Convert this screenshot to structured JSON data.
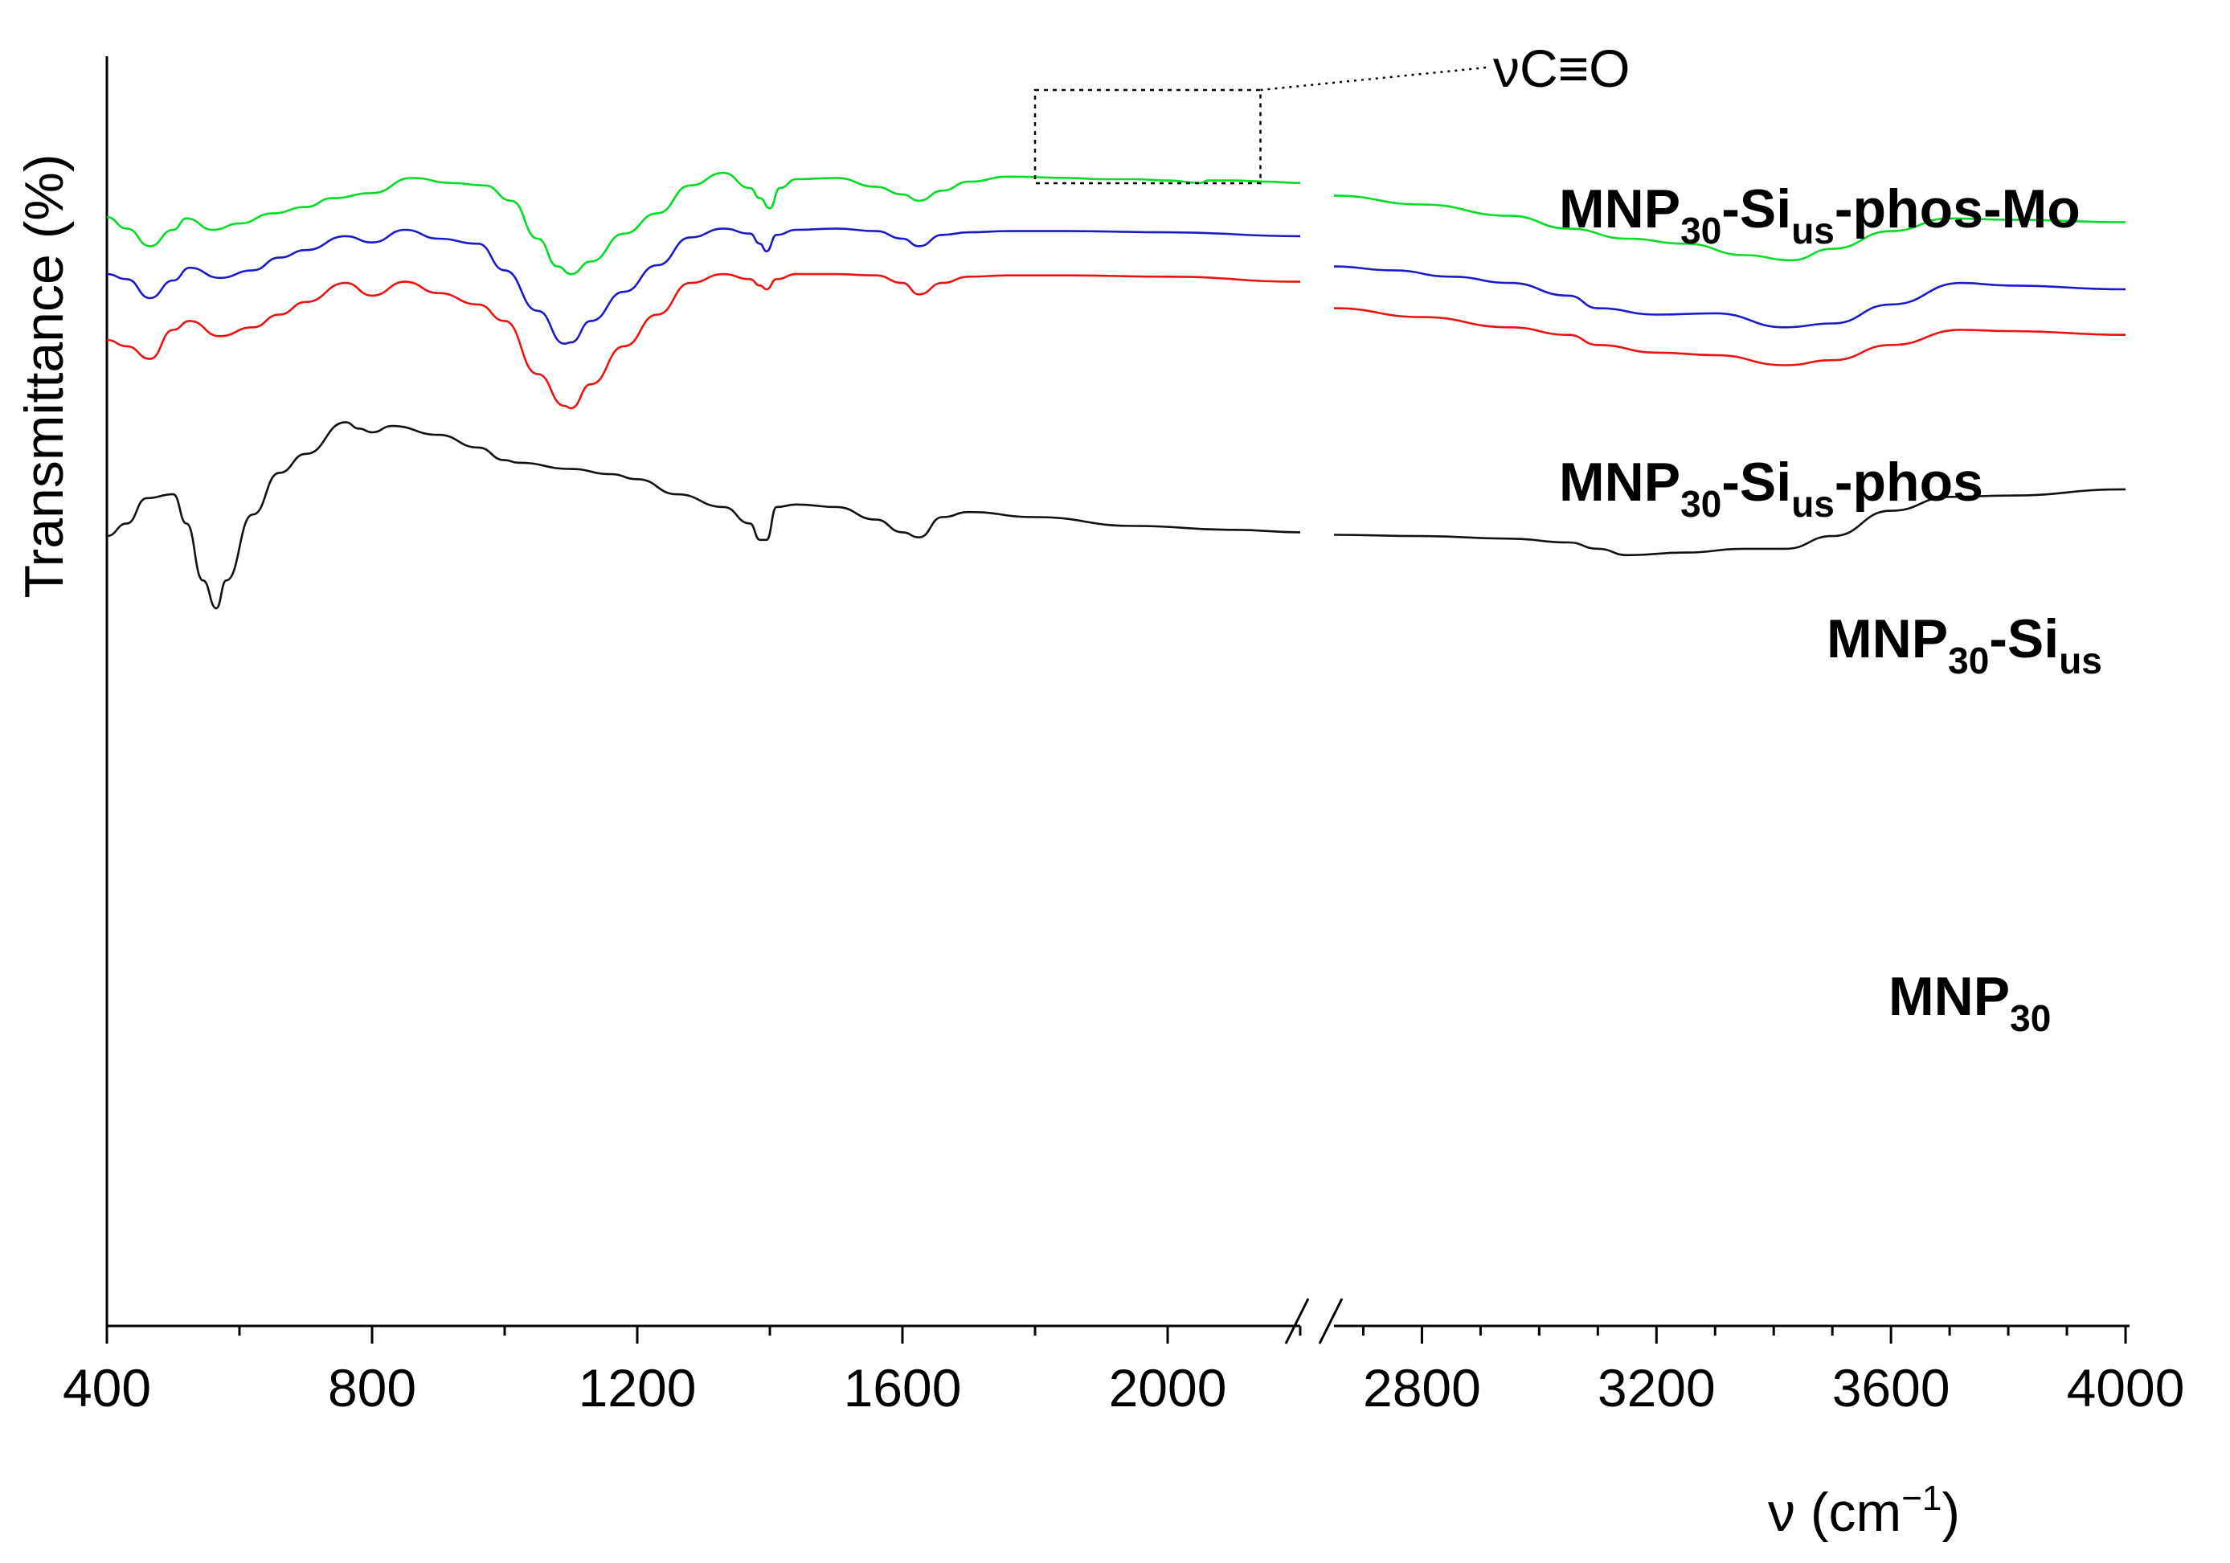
{
  "chart_data": {
    "type": "line",
    "title": "",
    "xlabel_symbol": "ν",
    "xlabel_unit": "cm",
    "xlabel_exp": "−1",
    "ylabel": "Transmittance (%)",
    "x_break": [
      2200,
      2650
    ],
    "xlim_left": [
      400,
      2200
    ],
    "xlim_right": [
      2650,
      4000
    ],
    "x_tick_labels_left": [
      "400",
      "800",
      "1200",
      "1600",
      "2000"
    ],
    "x_tick_labels_right": [
      "2800",
      "3200",
      "3600",
      "4000"
    ],
    "y_tick_labels": [],
    "annotation": {
      "text": "νC≡O",
      "region_x": [
        1800,
        2140
      ]
    },
    "series": [
      {
        "name": "MNP30-Sius-phos-Mo",
        "label_parts": [
          "MNP",
          "30",
          "-Si",
          "us",
          "-phos-Mo"
        ],
        "color": "#00dd22",
        "x": [
          400,
          430,
          465,
          500,
          520,
          560,
          600,
          650,
          700,
          740,
          800,
          860,
          920,
          970,
          1010,
          1050,
          1080,
          1100,
          1130,
          1180,
          1230,
          1280,
          1330,
          1370,
          1385,
          1400,
          1415,
          1440,
          1500,
          1560,
          1600,
          1625,
          1660,
          1700,
          1760,
          1850,
          1900,
          1950,
          2000,
          2050,
          2060,
          2100,
          2150,
          2200,
          2650,
          2800,
          2950,
          3050,
          3150,
          3250,
          3350,
          3430,
          3500,
          3600,
          3700,
          3800,
          4000
        ],
        "y": [
          57,
          48,
          34,
          47,
          56,
          47,
          52,
          60,
          65,
          72,
          76,
          88,
          84,
          82,
          70,
          40,
          18,
          12,
          22,
          44,
          60,
          82,
          92,
          80,
          72,
          64,
          80,
          87,
          88,
          81,
          75,
          70,
          78,
          85,
          89,
          88,
          87,
          87,
          86,
          84,
          86,
          86,
          85,
          84,
          74,
          67,
          58,
          48,
          40,
          36,
          27,
          23,
          32,
          46,
          56,
          55,
          53
        ]
      },
      {
        "name": "MNP30-Sius-phos",
        "label_parts": [
          "MNP",
          "30",
          "-Si",
          "us",
          "-phos"
        ],
        "color": "#1a1acc",
        "x": [
          400,
          430,
          465,
          500,
          525,
          570,
          620,
          660,
          700,
          760,
          800,
          850,
          900,
          960,
          1000,
          1050,
          1090,
          1100,
          1130,
          1180,
          1230,
          1280,
          1330,
          1370,
          1385,
          1395,
          1410,
          1440,
          1500,
          1560,
          1600,
          1625,
          1660,
          1700,
          1760,
          1850,
          2000,
          2200,
          2650,
          2750,
          2850,
          2950,
          3050,
          3100,
          3200,
          3300,
          3420,
          3500,
          3600,
          3720,
          3800,
          4000
        ],
        "y": [
          12,
          8,
          -7,
          7,
          17,
          9,
          15,
          25,
          31,
          42,
          37,
          47,
          40,
          36,
          15,
          -17,
          -43,
          -42,
          -25,
          -2,
          19,
          41,
          48,
          44,
          36,
          30,
          43,
          47,
          48,
          46,
          40,
          34,
          43,
          45,
          46,
          46,
          45,
          42,
          18,
          15,
          10,
          5,
          -5,
          -15,
          -20,
          -19,
          -30,
          -27,
          -12,
          5,
          3,
          0
        ]
      },
      {
        "name": "MNP30-Sius",
        "label_parts": [
          "MNP",
          "30",
          "-Si",
          "us"
        ],
        "color": "#ee1111",
        "x": [
          400,
          430,
          465,
          500,
          525,
          570,
          620,
          660,
          700,
          760,
          800,
          850,
          900,
          960,
          1000,
          1050,
          1090,
          1100,
          1130,
          1180,
          1230,
          1280,
          1330,
          1370,
          1385,
          1395,
          1410,
          1440,
          1500,
          1560,
          1600,
          1625,
          1660,
          1700,
          1760,
          1850,
          2000,
          2200,
          2650,
          2800,
          2950,
          3050,
          3100,
          3200,
          3300,
          3420,
          3500,
          3600,
          3720,
          3800,
          4000
        ],
        "y": [
          -40,
          -45,
          -55,
          -32,
          -25,
          -37,
          -30,
          -20,
          -10,
          5,
          -5,
          6,
          -3,
          -12,
          -25,
          -67,
          -92,
          -94,
          -75,
          -45,
          -20,
          5,
          12,
          8,
          3,
          0,
          8,
          12,
          12,
          11,
          5,
          -4,
          5,
          10,
          11,
          11,
          10,
          6,
          -15,
          -22,
          -30,
          -36,
          -44,
          -50,
          -52,
          -60,
          -56,
          -44,
          -32,
          -33,
          -36
        ]
      },
      {
        "name": "MNP30",
        "label_parts": [
          "MNP",
          "30"
        ],
        "color": "#111111",
        "x": [
          400,
          430,
          460,
          500,
          520,
          545,
          565,
          580,
          620,
          660,
          700,
          760,
          780,
          800,
          830,
          900,
          960,
          1000,
          1020,
          1100,
          1160,
          1200,
          1260,
          1330,
          1370,
          1385,
          1395,
          1410,
          1440,
          1500,
          1560,
          1600,
          1625,
          1660,
          1700,
          1800,
          1950,
          2100,
          2200,
          2650,
          2800,
          2950,
          3050,
          3100,
          3150,
          3250,
          3350,
          3420,
          3500,
          3600,
          3700,
          3800,
          4000
        ],
        "y": [
          -195,
          -185,
          -165,
          -162,
          -185,
          -230,
          -252,
          -230,
          -178,
          -145,
          -130,
          -105,
          -110,
          -113,
          -108,
          -115,
          -125,
          -135,
          -137,
          -142,
          -146,
          -150,
          -162,
          -172,
          -185,
          -198,
          -198,
          -172,
          -170,
          -172,
          -182,
          -192,
          -196,
          -180,
          -176,
          -180,
          -187,
          -190,
          -192,
          -194,
          -195,
          -197,
          -200,
          -205,
          -210,
          -208,
          -205,
          -205,
          -195,
          -175,
          -164,
          -163,
          -158
        ]
      }
    ]
  }
}
